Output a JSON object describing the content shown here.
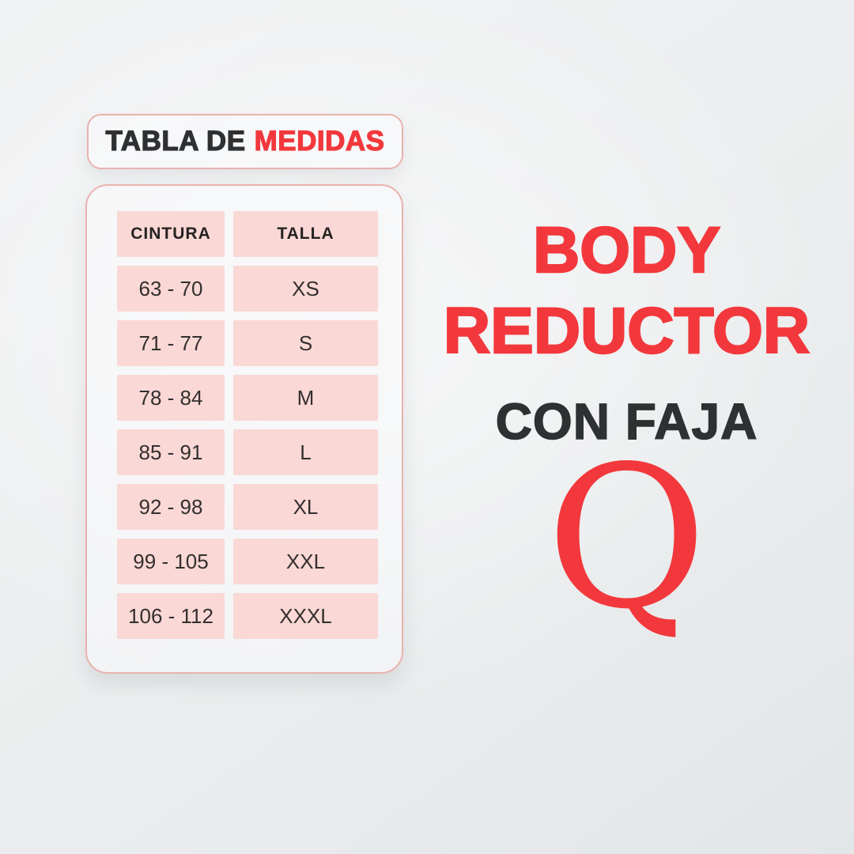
{
  "chart_data": {
    "type": "table",
    "title": "TABLA DE MEDIDAS",
    "columns": [
      "CINTURA",
      "TALLA"
    ],
    "rows": [
      [
        "63 - 70",
        "XS"
      ],
      [
        "71 - 77",
        "S"
      ],
      [
        "78 - 84",
        "M"
      ],
      [
        "85 - 91",
        "L"
      ],
      [
        "92 - 98",
        "XL"
      ],
      [
        "99 - 105",
        "XXL"
      ],
      [
        "106 - 112",
        "XXXL"
      ]
    ]
  },
  "header": {
    "title_dark": "TABLA DE",
    "title_red": "MEDIDAS"
  },
  "product": {
    "title_line1": "BODY",
    "title_line2": "REDUCTOR",
    "subtitle": "CON FAJA",
    "brand_letter": "Q"
  },
  "colors": {
    "accent_red": "#f2383c",
    "dark_text": "#2e3032",
    "cell_pink": "#f9d8d6",
    "border_pink": "#e9b2af",
    "background": "#edeff0"
  }
}
